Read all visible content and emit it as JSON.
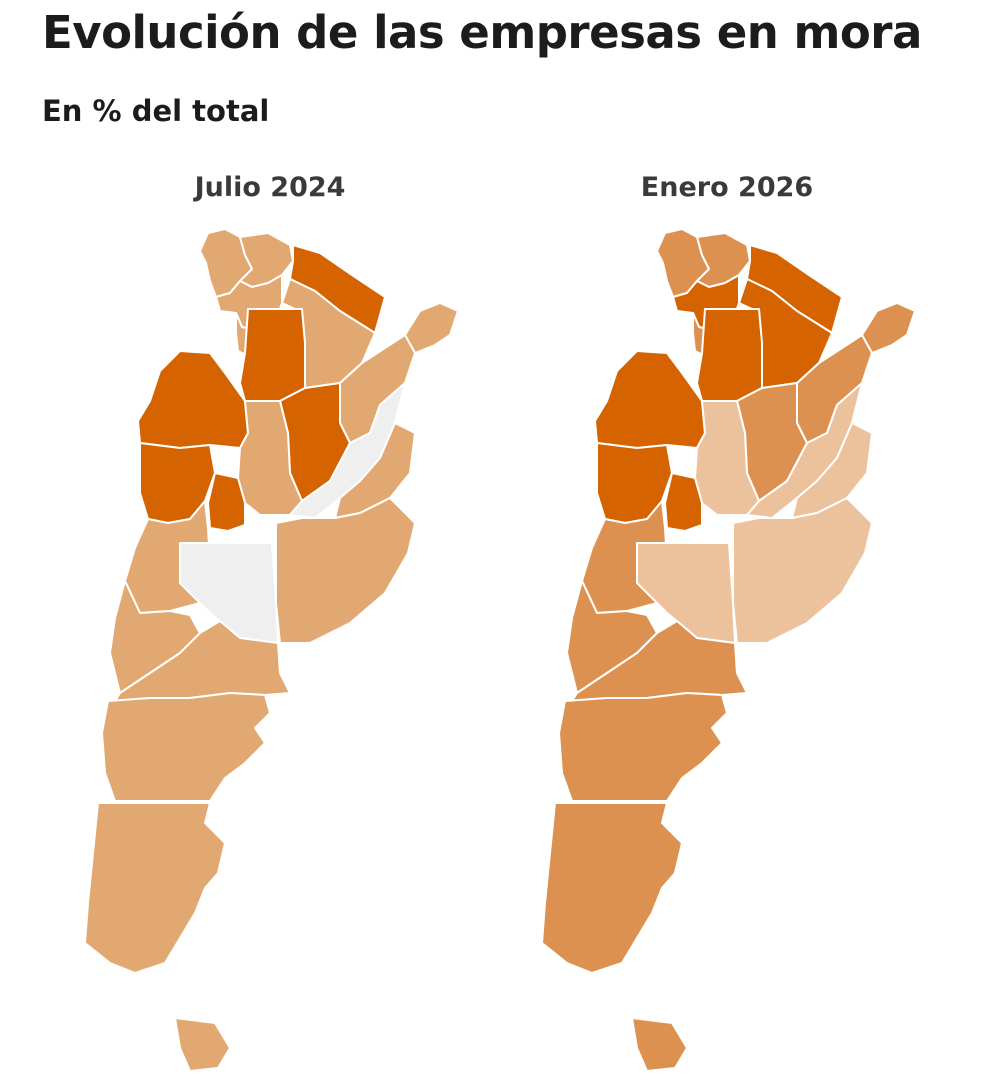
{
  "title": "Evolución de las empresas en mora",
  "subtitle": "En % del total",
  "colors": {
    "no_data": "#efefef",
    "light": "#ebc29c",
    "medium": "#e2a871",
    "medium_dark": "#dd9150",
    "dark": "#d56300"
  },
  "maps": [
    {
      "label": "Julio 2024",
      "provinces": {
        "jujuy": "medium",
        "salta_north": "medium",
        "formosa": "dark",
        "chaco": "medium",
        "salta_south": "medium",
        "tucuman": "medium",
        "catamarca": "dark",
        "santiago_del_estero": "dark",
        "misiones": "medium",
        "corrientes": "medium",
        "la_rioja": "dark",
        "cordoba": "medium",
        "santa_fe": "no_data",
        "entre_rios": "medium",
        "san_juan": "dark",
        "san_luis": "dark",
        "mendoza": "medium",
        "la_pampa": "no_data",
        "buenos_aires": "medium",
        "neuquen": "medium",
        "rio_negro": "medium",
        "chubut": "medium",
        "santa_cruz": "medium",
        "tierra_del_fuego": "medium"
      }
    },
    {
      "label": "Enero 2026",
      "provinces": {
        "jujuy": "medium_dark",
        "salta_north": "medium_dark",
        "formosa": "dark",
        "chaco": "dark",
        "salta_south": "dark",
        "tucuman": "medium_dark",
        "catamarca": "dark",
        "santiago_del_estero": "medium_dark",
        "misiones": "medium_dark",
        "corrientes": "medium_dark",
        "la_rioja": "dark",
        "cordoba": "light",
        "santa_fe": "light",
        "entre_rios": "light",
        "san_juan": "dark",
        "san_luis": "dark",
        "mendoza": "medium_dark",
        "la_pampa": "light",
        "buenos_aires": "light",
        "neuquen": "medium_dark",
        "rio_negro": "medium_dark",
        "chubut": "medium_dark",
        "santa_cruz": "medium_dark",
        "tierra_del_fuego": "medium_dark"
      }
    }
  ]
}
